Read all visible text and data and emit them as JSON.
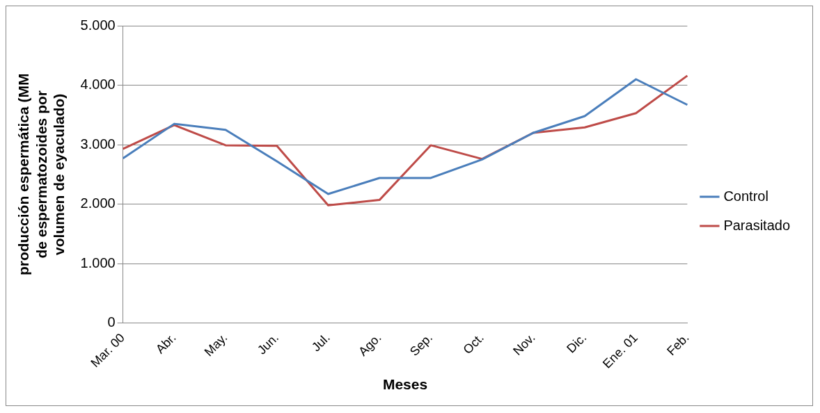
{
  "chart_data": {
    "type": "line",
    "xlabel": "Meses",
    "ylabel": "producción espermática (MM de espermatozoides por volumen de eyaculado)",
    "categories": [
      "Mar. 00",
      "Abr.",
      "May.",
      "Jun.",
      "Jul.",
      "Ago.",
      "Sep.",
      "Oct.",
      "Nov.",
      "Dic.",
      "Ene. 01",
      "Feb."
    ],
    "series": [
      {
        "name": "Control",
        "color": "#4a7ebb",
        "values": [
          2770,
          3350,
          3250,
          2720,
          2170,
          2440,
          2440,
          2750,
          3200,
          3480,
          4100,
          3670
        ]
      },
      {
        "name": "Parasitado",
        "color": "#be4b48",
        "values": [
          2930,
          3330,
          2990,
          2980,
          1980,
          2070,
          2990,
          2760,
          3200,
          3290,
          3530,
          4160
        ]
      }
    ],
    "ylim": [
      0,
      5000
    ],
    "yticks": [
      {
        "value": 0,
        "label": "0"
      },
      {
        "value": 1000,
        "label": "1.000"
      },
      {
        "value": 2000,
        "label": "2.000"
      },
      {
        "value": 3000,
        "label": "3.000"
      },
      {
        "value": 4000,
        "label": "4.000"
      },
      {
        "value": 5000,
        "label": "5.000"
      }
    ],
    "grid": "y",
    "legend": "right",
    "marker": "none",
    "line_style": "solid"
  }
}
